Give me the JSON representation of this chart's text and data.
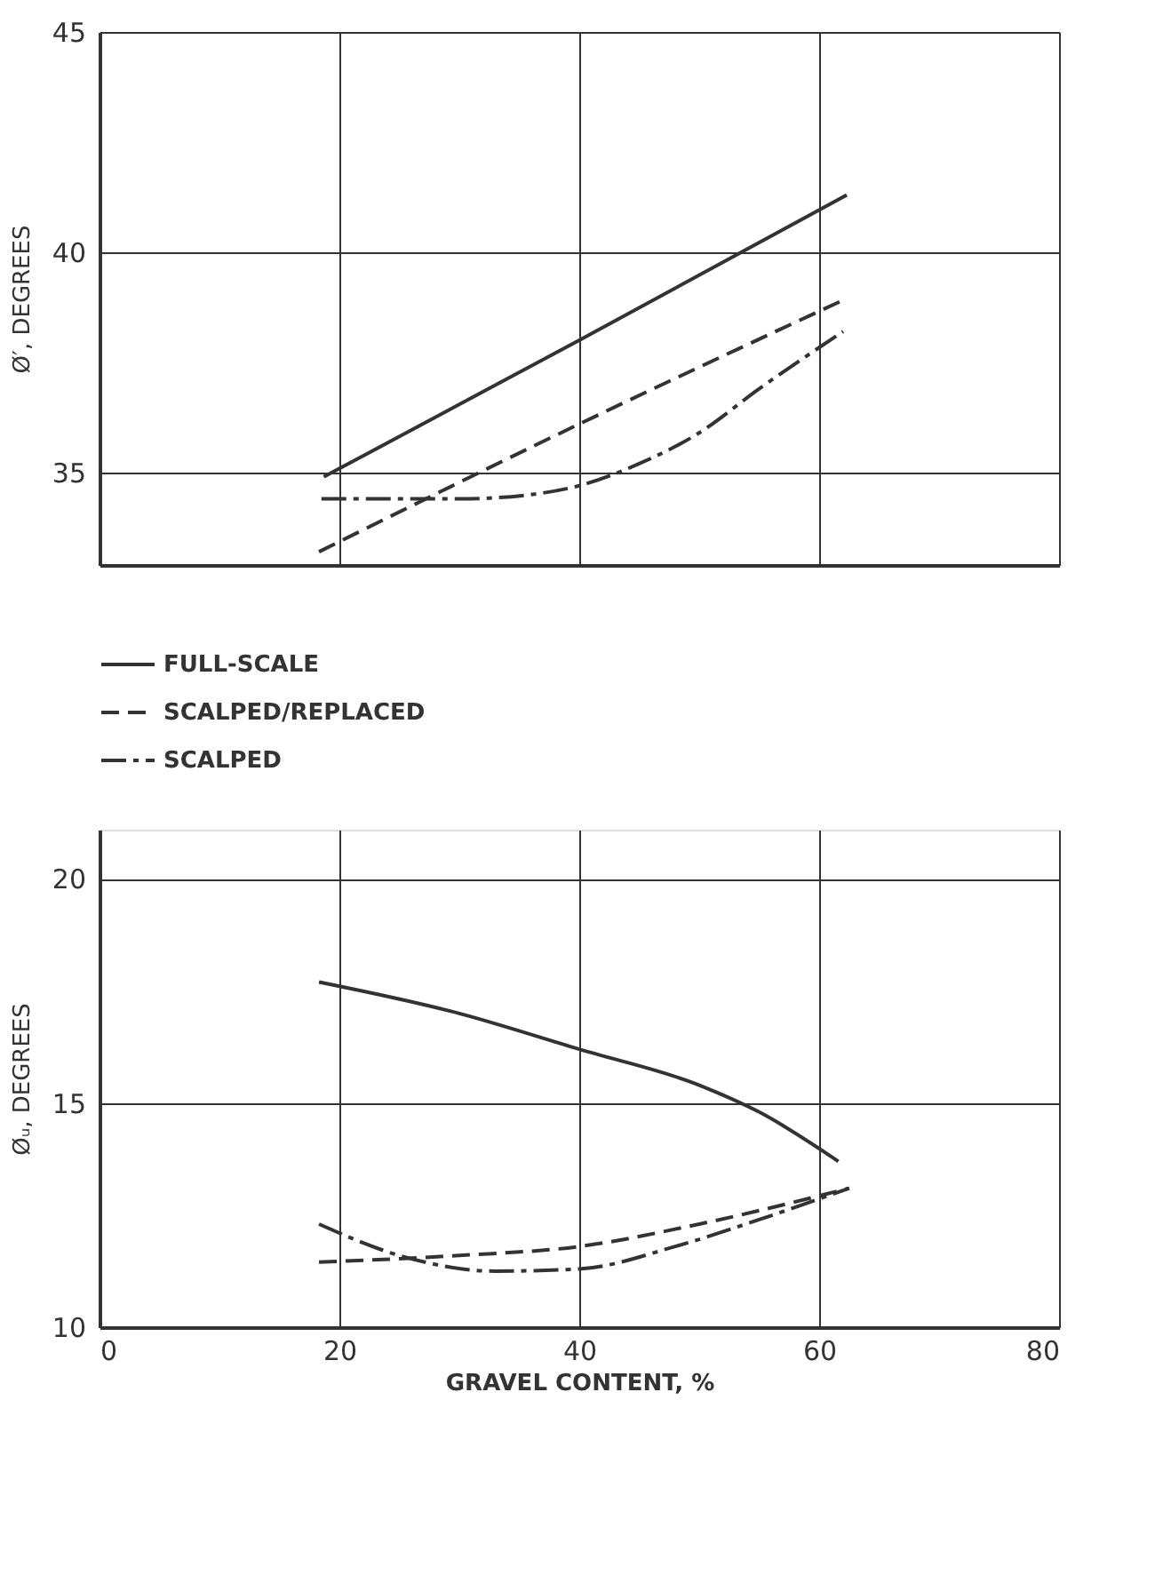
{
  "chart_data": [
    {
      "type": "line",
      "ylabel": "Ø′, DEGREES",
      "xlim": [
        0,
        80
      ],
      "xticks": [
        0,
        20,
        40,
        60,
        80
      ],
      "ylim": [
        32.9,
        45
      ],
      "yticks": [
        35,
        40,
        45
      ],
      "grid": true,
      "tick_labels": "y",
      "legend": "bottom",
      "marker": "none",
      "series": [
        {
          "name": "FULL-SCALE",
          "color": "#333333",
          "line_style": "solid",
          "x": [
            18.7,
            40,
            62.3
          ],
          "values": [
            34.9,
            38.0,
            41.3
          ]
        },
        {
          "name": "SCALPED/REPLACED",
          "color": "#333333",
          "line_style": "dashed",
          "x": [
            18.3,
            40,
            61.9
          ],
          "values": [
            33.2,
            36.1,
            38.9
          ]
        },
        {
          "name": "SCALPED",
          "color": "#333333",
          "line_style": "dashdot",
          "x": [
            18.5,
            30,
            36,
            40,
            45,
            50,
            55,
            62
          ],
          "values": [
            34.4,
            34.4,
            34.5,
            34.7,
            35.2,
            35.9,
            36.9,
            38.2
          ]
        }
      ]
    },
    {
      "type": "line",
      "ylabel": "Øᵤ, DEGREES",
      "xlabel": "GRAVEL CONTENT, %",
      "xlim": [
        0,
        80
      ],
      "xticks": [
        0,
        20,
        40,
        60,
        80
      ],
      "ylim": [
        10,
        21.1
      ],
      "yticks": [
        10,
        15,
        20
      ],
      "grid": true,
      "legend": false,
      "marker": "none",
      "series": [
        {
          "color": "#333333",
          "line_style": "solid",
          "x": [
            18.3,
            30,
            40,
            50,
            55,
            61.6
          ],
          "values": [
            17.7,
            17.0,
            16.2,
            15.4,
            14.8,
            13.7
          ]
        },
        {
          "color": "#333333",
          "line_style": "dashed",
          "x": [
            18.3,
            30,
            40,
            50,
            62.5
          ],
          "values": [
            11.45,
            11.6,
            11.8,
            12.3,
            13.1
          ]
        },
        {
          "color": "#333333",
          "line_style": "dashdot",
          "x": [
            18.3,
            25,
            33,
            40,
            48,
            55,
            62.5
          ],
          "values": [
            12.3,
            11.6,
            11.25,
            11.3,
            11.8,
            12.4,
            13.1
          ]
        }
      ]
    }
  ]
}
